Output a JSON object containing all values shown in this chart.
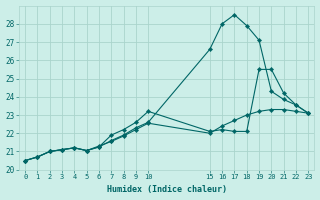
{
  "title": "",
  "xlabel": "Humidex (Indice chaleur)",
  "ylabel": "",
  "bg_color": "#cceee8",
  "grid_color": "#aad4cc",
  "line_color": "#006666",
  "xlim": [
    -0.5,
    23.5
  ],
  "ylim": [
    20,
    29
  ],
  "yticks": [
    20,
    21,
    22,
    23,
    24,
    25,
    26,
    27,
    28
  ],
  "xtick_vals": [
    0,
    1,
    2,
    3,
    4,
    5,
    6,
    7,
    8,
    9,
    10,
    15,
    16,
    17,
    18,
    19,
    20,
    21,
    22,
    23
  ],
  "xtick_labels": [
    "0",
    "1",
    "2",
    "3",
    "4",
    "5",
    "6",
    "7",
    "8",
    "9",
    "10",
    "15",
    "16",
    "17",
    "18",
    "19",
    "20",
    "21",
    "22",
    "23"
  ],
  "line1_x": [
    0,
    1,
    2,
    3,
    4,
    5,
    6,
    7,
    8,
    9,
    10,
    15,
    16,
    17,
    18,
    19,
    20,
    21,
    22,
    23
  ],
  "line1_y": [
    20.5,
    20.7,
    21.0,
    21.1,
    21.2,
    21.05,
    21.25,
    21.6,
    21.9,
    22.3,
    22.6,
    26.6,
    28.0,
    28.5,
    27.9,
    27.1,
    24.3,
    23.85,
    23.55,
    23.1
  ],
  "line2_x": [
    0,
    1,
    2,
    3,
    4,
    5,
    6,
    7,
    8,
    9,
    10,
    15,
    16,
    17,
    18,
    19,
    20,
    21,
    22,
    23
  ],
  "line2_y": [
    20.5,
    20.7,
    21.0,
    21.1,
    21.2,
    21.05,
    21.25,
    21.9,
    22.2,
    22.6,
    23.2,
    22.1,
    22.2,
    22.1,
    22.1,
    25.5,
    25.5,
    24.2,
    23.55,
    23.1
  ],
  "line3_x": [
    0,
    1,
    2,
    3,
    4,
    5,
    6,
    7,
    8,
    9,
    10,
    15,
    16,
    17,
    18,
    19,
    20,
    21,
    22,
    23
  ],
  "line3_y": [
    20.5,
    20.7,
    21.0,
    21.1,
    21.2,
    21.05,
    21.3,
    21.55,
    21.85,
    22.2,
    22.55,
    22.0,
    22.4,
    22.7,
    23.0,
    23.2,
    23.3,
    23.3,
    23.2,
    23.1
  ]
}
